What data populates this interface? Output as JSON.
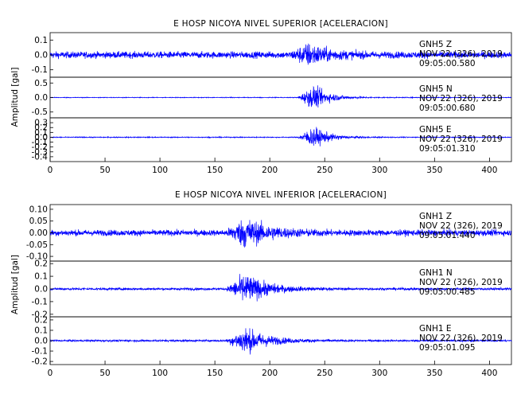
{
  "chart_data": [
    {
      "type": "line",
      "title": "E HOSP NICOYA NIVEL SUPERIOR [ACELERACION]",
      "ylabel": "Amplitud [gal]",
      "xlim": [
        0,
        420
      ],
      "xticks": [
        0,
        50,
        100,
        150,
        200,
        250,
        300,
        350,
        400
      ],
      "series_color": "#0000ff",
      "panels": [
        {
          "station": "GNH5",
          "component": "Z",
          "date": "NOV 22 (326), 2019",
          "time": "09:05:00.580",
          "ylim": [
            -0.15,
            0.15
          ],
          "yticks": [
            0.1,
            0.0,
            -0.1
          ],
          "noise": 0.035,
          "event_start": 218,
          "event_peak": 236,
          "event_peak_amp": 0.14,
          "decay": 18
        },
        {
          "station": "GNH5",
          "component": "N",
          "date": "NOV 22 (326), 2019",
          "time": "09:05:00.680",
          "ylim": [
            -0.7,
            0.7
          ],
          "yticks": [
            0.5,
            0.0,
            -0.5
          ],
          "noise": 0.02,
          "event_start": 225,
          "event_peak": 240,
          "event_peak_amp": 0.65,
          "decay": 15
        },
        {
          "station": "GNH5",
          "component": "E",
          "date": "NOV 22 (326), 2019",
          "time": "09:05:01.310",
          "ylim": [
            -0.5,
            0.4
          ],
          "yticks": [
            0.3,
            0.2,
            0.1,
            0.0,
            -0.1,
            -0.2,
            -0.3,
            -0.4
          ],
          "noise": 0.015,
          "event_start": 225,
          "event_peak": 240,
          "event_peak_amp": 0.35,
          "decay": 14
        }
      ]
    },
    {
      "type": "line",
      "title": "E HOSP NICOYA NIVEL INFERIOR [ACELERACION]",
      "ylabel": "Amplitud [gal]",
      "xlim": [
        0,
        420
      ],
      "xticks": [
        0,
        50,
        100,
        150,
        200,
        250,
        300,
        350,
        400
      ],
      "series_color": "#0000ff",
      "panels": [
        {
          "station": "GNH1",
          "component": "Z",
          "date": "NOV 22 (326), 2019",
          "time": "09:05:01.440",
          "ylim": [
            -0.12,
            0.12
          ],
          "yticks": [
            0.1,
            0.05,
            0.0,
            -0.05,
            -0.1
          ],
          "noise": 0.02,
          "event_start": 160,
          "event_peak": 178,
          "event_peak_amp": 0.11,
          "decay": 22
        },
        {
          "station": "GNH1",
          "component": "N",
          "date": "NOV 22 (326), 2019",
          "time": "09:05:00.485",
          "ylim": [
            -0.22,
            0.22
          ],
          "yticks": [
            0.2,
            0.1,
            0.0,
            -0.1,
            -0.2
          ],
          "noise": 0.015,
          "event_start": 160,
          "event_peak": 178,
          "event_peak_amp": 0.2,
          "decay": 20
        },
        {
          "station": "GNH1",
          "component": "E",
          "date": "NOV 22 (326), 2019",
          "time": "09:05:01.095",
          "ylim": [
            -0.23,
            0.23
          ],
          "yticks": [
            0.2,
            0.1,
            0.0,
            -0.1,
            -0.2
          ],
          "noise": 0.015,
          "event_start": 160,
          "event_peak": 178,
          "event_peak_amp": 0.21,
          "decay": 20
        }
      ]
    }
  ]
}
